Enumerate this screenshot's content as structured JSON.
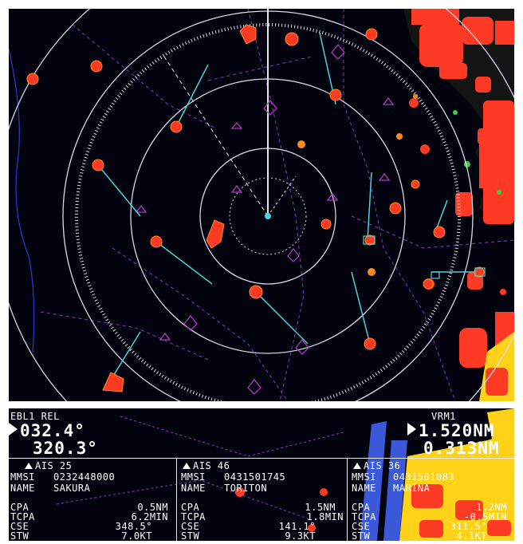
{
  "ebl": {
    "label": "EBL1 REL",
    "bearing": "032.4°",
    "bearing_true": "320.3°"
  },
  "vrm": {
    "label": "VRM1",
    "range": "1.520NM",
    "range2": "0.313NM"
  },
  "ais_targets": [
    {
      "header": "AIS 25",
      "mmsi_label": "MMSI",
      "mmsi": "0232448000",
      "name_label": "NAME",
      "name": "SAKURA",
      "rows": [
        {
          "label": "CPA",
          "value": "0.5NM"
        },
        {
          "label": "TCPA",
          "value": "6.2MIN"
        },
        {
          "label": "CSE",
          "value": "348.5°"
        },
        {
          "label": "STW",
          "value": "7.0KT"
        }
      ]
    },
    {
      "header": "AIS 46",
      "mmsi_label": "MMSI",
      "mmsi": "0431501745",
      "name_label": "NAME",
      "name": "TORITON",
      "rows": [
        {
          "label": "CPA",
          "value": "1.5NM"
        },
        {
          "label": "TCPA",
          "value": "1.8MIN"
        },
        {
          "label": "CSE",
          "value": "141.1°"
        },
        {
          "label": "STW",
          "value": "9.3KT"
        }
      ]
    },
    {
      "header": "AIS 36",
      "mmsi_label": "MMSI",
      "mmsi": "0431501083",
      "name_label": "NAME",
      "name": "MARINA",
      "rows": [
        {
          "label": "CPA",
          "value": "1.2NM"
        },
        {
          "label": "TCPA",
          "value": "-0.5MIN"
        },
        {
          "label": "CSE",
          "value": "311.5°"
        },
        {
          "label": "STW",
          "value": "4.1KT"
        }
      ]
    }
  ],
  "colors": {
    "background": "#03030f",
    "range_ring": "#d8d8e8",
    "land": "#ff3a24",
    "land_shallow": "#ffd21a",
    "vector": "#4fd3d3",
    "ais_symbol": "#b13ac0",
    "coast": "#2a3ad0"
  }
}
